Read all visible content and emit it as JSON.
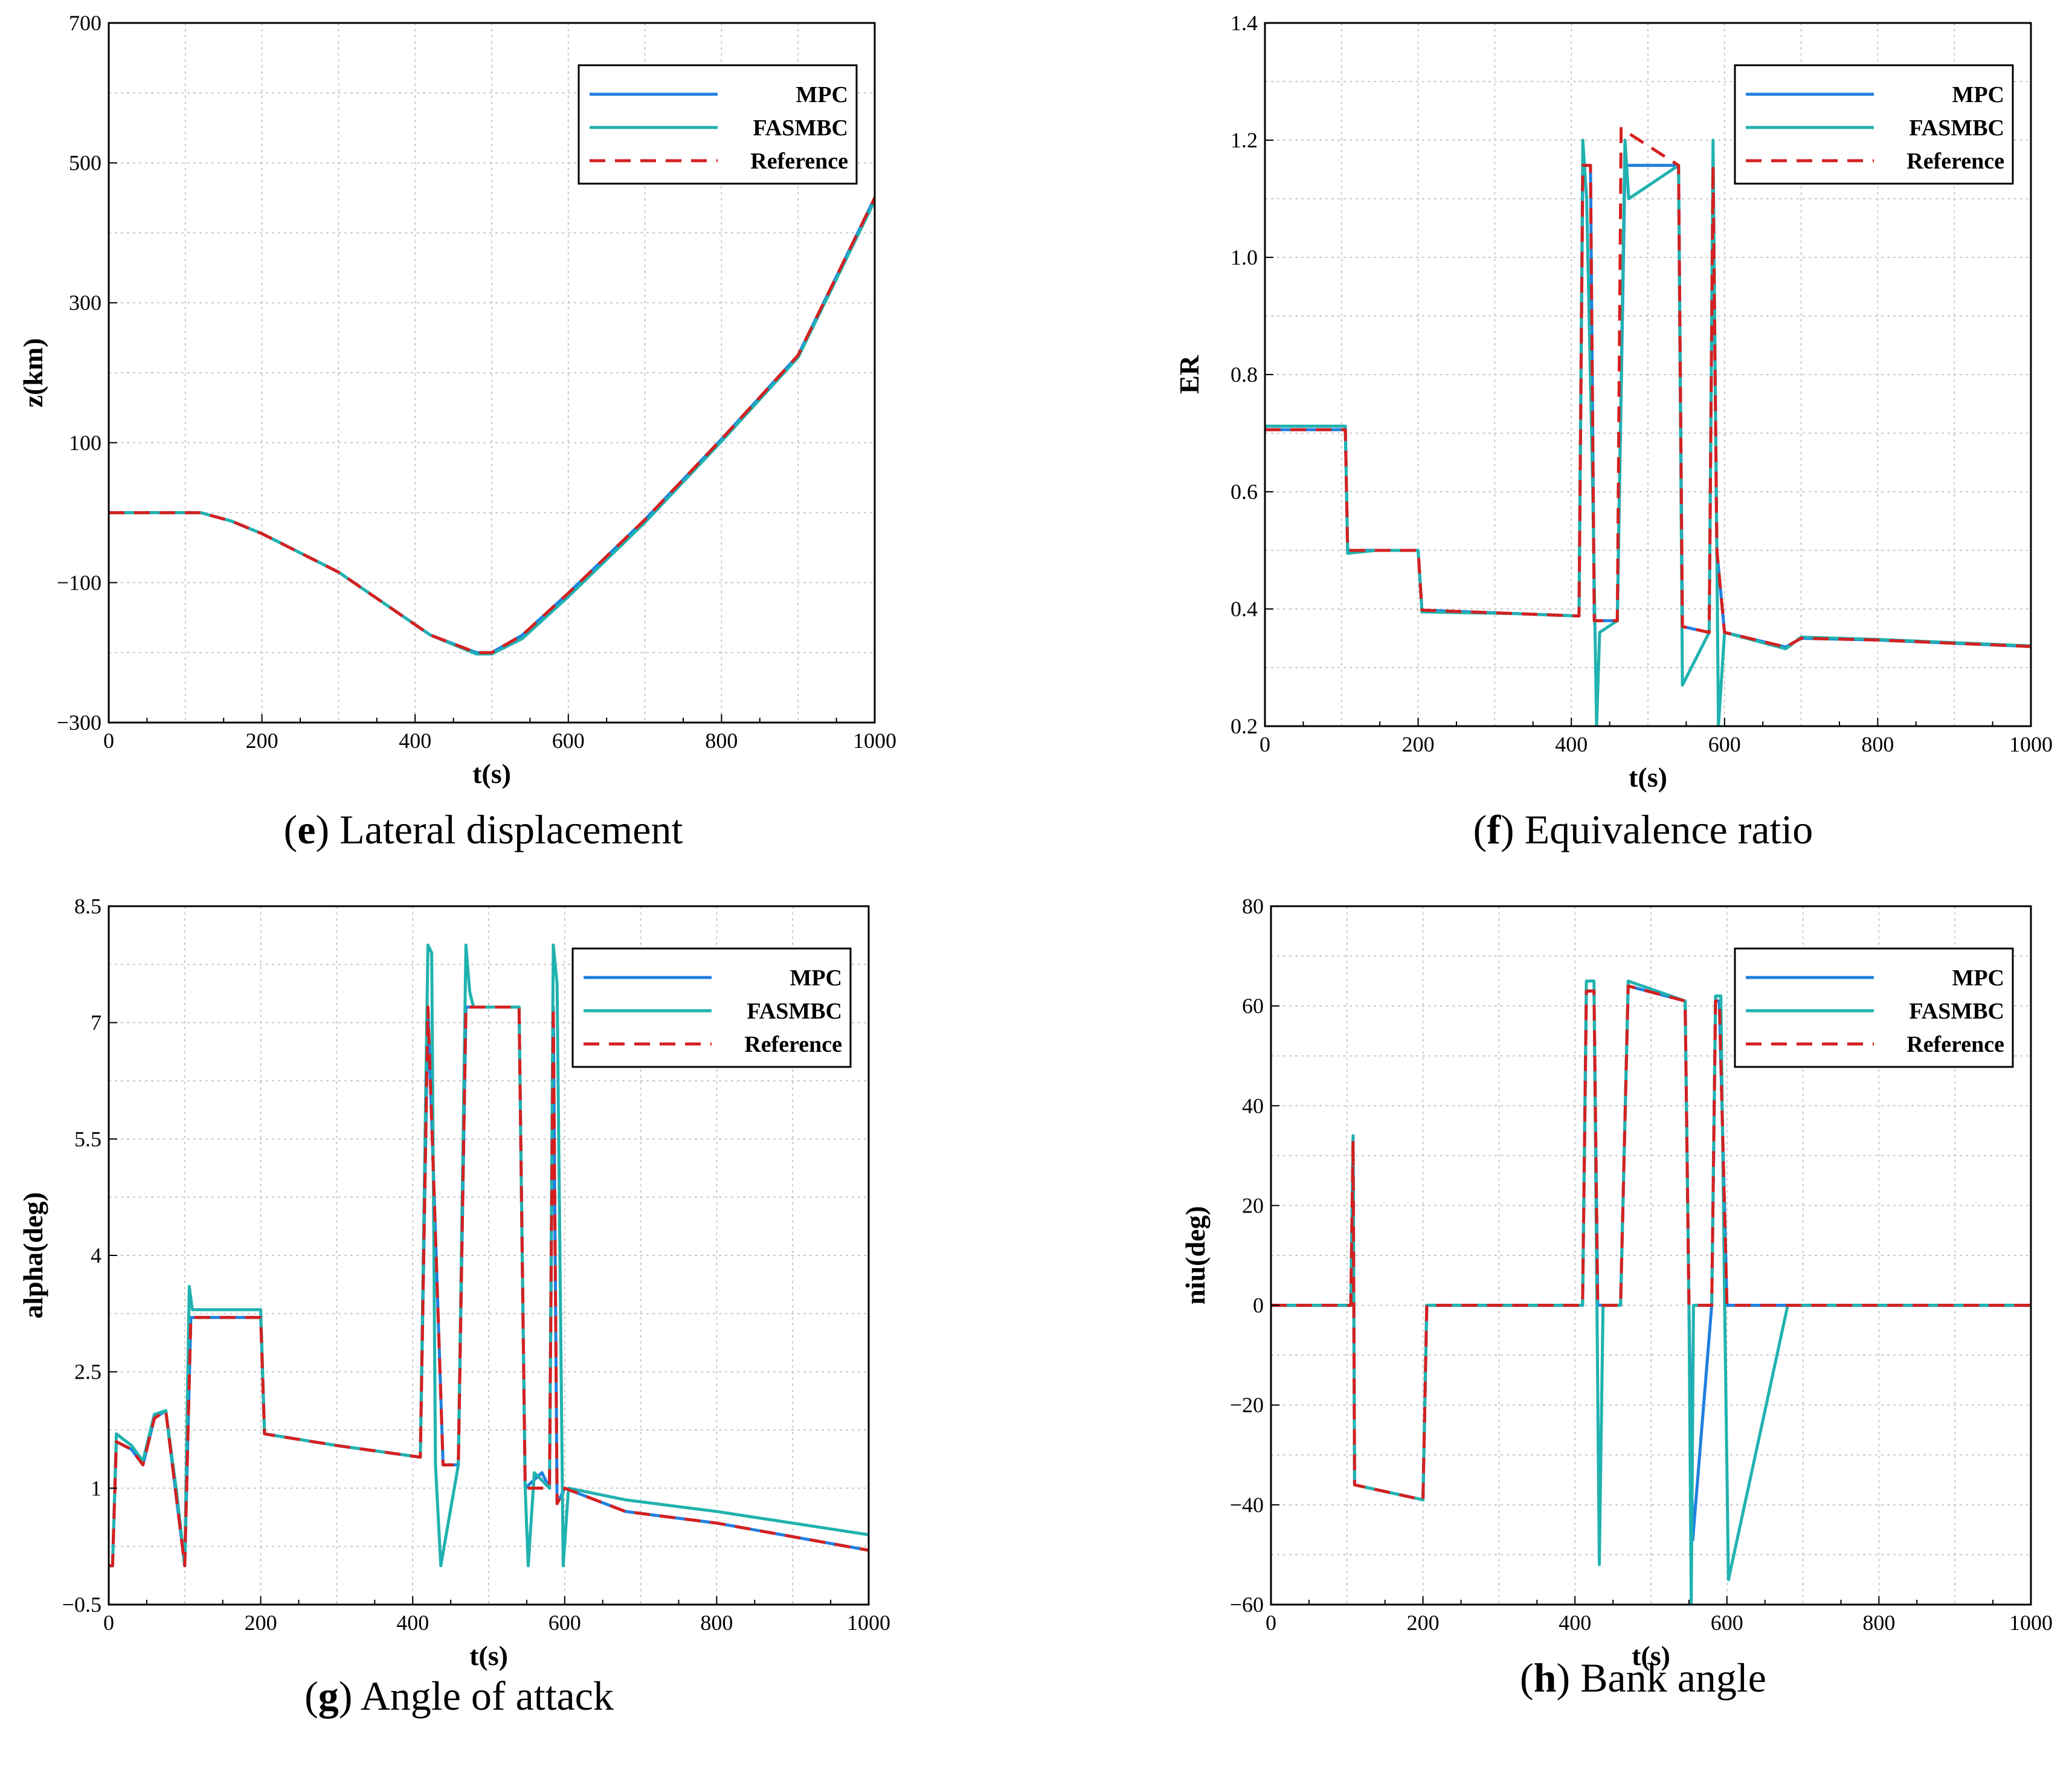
{
  "legend": [
    {
      "name": "MPC",
      "color": "#1f7fe0",
      "style": "solid"
    },
    {
      "name": "FASMBC",
      "color": "#20b2b0",
      "style": "solid"
    },
    {
      "name": "Reference",
      "color": "#d42020",
      "style": "dashed"
    }
  ],
  "chart_data": [
    {
      "id": "e",
      "type": "line",
      "caption_letter": "e",
      "caption_text": " Lateral displacement",
      "xlabel": "t(s)",
      "ylabel": "z(km)",
      "xlim": [
        0,
        1000
      ],
      "ylim": [
        -300,
        700
      ],
      "xticks": [
        0,
        200,
        400,
        600,
        800,
        1000
      ],
      "yticks": [
        -300,
        -100,
        100,
        300,
        500,
        700
      ],
      "yticklabels": [
        "−300",
        "−100",
        "100",
        "300",
        "500",
        "700"
      ],
      "grid": true,
      "legend_position": "top-right",
      "series": [
        {
          "name": "MPC",
          "x": [
            0,
            60,
            120,
            160,
            200,
            300,
            420,
            480,
            500,
            540,
            600,
            700,
            800,
            900,
            1000
          ],
          "y": [
            0,
            0,
            0,
            -12,
            -30,
            -85,
            -175,
            -200,
            -200,
            -175,
            -115,
            -10,
            105,
            225,
            450
          ]
        },
        {
          "name": "FASMBC",
          "x": [
            0,
            60,
            120,
            160,
            200,
            300,
            420,
            480,
            500,
            540,
            600,
            700,
            800,
            900,
            1000
          ],
          "y": [
            0,
            0,
            0,
            -12,
            -30,
            -85,
            -175,
            -202,
            -202,
            -180,
            -120,
            -14,
            102,
            222,
            446
          ]
        },
        {
          "name": "Reference",
          "x": [
            0,
            60,
            120,
            160,
            200,
            300,
            420,
            480,
            500,
            540,
            600,
            700,
            800,
            900,
            1000
          ],
          "y": [
            0,
            0,
            0,
            -12,
            -30,
            -85,
            -175,
            -200,
            -200,
            -175,
            -115,
            -10,
            105,
            225,
            450
          ]
        }
      ]
    },
    {
      "id": "f",
      "type": "line",
      "caption_letter": "f",
      "caption_text": " Equivalence ratio",
      "xlabel": "t(s)",
      "ylabel": "ER",
      "xlim": [
        0,
        1000
      ],
      "ylim": [
        0.2,
        1.4
      ],
      "xticks": [
        0,
        200,
        400,
        600,
        800,
        1000
      ],
      "yticks": [
        0.2,
        0.4,
        0.6,
        0.8,
        1.0,
        1.2,
        1.4
      ],
      "yticklabels": [
        "0.2",
        "0.4",
        "0.6",
        "0.8",
        "1.0",
        "1.2",
        "1.4"
      ],
      "grid": true,
      "legend_position": "top-right",
      "series": [
        {
          "name": "MPC",
          "x": [
            0,
            105,
            108,
            145,
            146,
            200,
            205,
            330,
            410,
            415,
            425,
            430,
            440,
            460,
            470,
            540,
            545,
            580,
            585,
            590,
            600,
            680,
            700,
            800,
            1000
          ],
          "y": [
            0.706,
            0.706,
            0.5,
            0.5,
            0.5,
            0.5,
            0.398,
            0.392,
            0.388,
            1.157,
            1.157,
            0.38,
            0.38,
            0.38,
            1.157,
            1.157,
            0.37,
            0.36,
            1.157,
            0.5,
            0.36,
            0.335,
            0.35,
            0.347,
            0.336
          ]
        },
        {
          "name": "FASMBC",
          "x": [
            0,
            105,
            108,
            145,
            200,
            205,
            330,
            410,
            415,
            420,
            428,
            433,
            437,
            460,
            470,
            475,
            540,
            545,
            580,
            585,
            592,
            600,
            680,
            700,
            800,
            1000
          ],
          "y": [
            0.712,
            0.712,
            0.495,
            0.5,
            0.5,
            0.395,
            0.392,
            0.388,
            1.2,
            1.1,
            0.6,
            0.2,
            0.36,
            0.38,
            1.2,
            1.1,
            1.157,
            0.27,
            0.36,
            1.2,
            0.2,
            0.36,
            0.332,
            0.352,
            0.348,
            0.337
          ]
        },
        {
          "name": "Reference",
          "x": [
            0,
            105,
            108,
            145,
            200,
            205,
            330,
            410,
            415,
            425,
            430,
            460,
            465,
            540,
            545,
            580,
            585,
            590,
            600,
            680,
            700,
            800,
            1000
          ],
          "y": [
            0.706,
            0.706,
            0.5,
            0.5,
            0.5,
            0.398,
            0.392,
            0.388,
            1.157,
            1.157,
            0.38,
            0.38,
            1.22,
            1.157,
            0.37,
            0.36,
            1.157,
            0.5,
            0.36,
            0.335,
            0.35,
            0.347,
            0.336
          ]
        }
      ]
    },
    {
      "id": "g",
      "type": "line",
      "caption_letter": "g",
      "caption_text": " Angle of attack",
      "xlabel": "t(s)",
      "ylabel": "alpha(deg)",
      "xlim": [
        0,
        1000
      ],
      "ylim": [
        -0.5,
        8.5
      ],
      "xticks": [
        0,
        200,
        400,
        600,
        800,
        1000
      ],
      "yticks": [
        -0.5,
        1,
        2.5,
        4,
        5.5,
        7,
        8.5
      ],
      "yticklabels": [
        "−0.5",
        "1",
        "2.5",
        "4",
        "5.5",
        "7",
        "8.5"
      ],
      "grid": true,
      "legend_position": "top-right",
      "series": [
        {
          "name": "MPC",
          "x": [
            0,
            5,
            10,
            30,
            45,
            60,
            75,
            90,
            100,
            108,
            145,
            200,
            205,
            300,
            410,
            420,
            440,
            460,
            470,
            540,
            548,
            570,
            580,
            585,
            590,
            600,
            680,
            800,
            1000
          ],
          "y": [
            0.0,
            0.0,
            1.6,
            1.5,
            1.3,
            1.9,
            2.0,
            0.8,
            0.0,
            3.2,
            3.2,
            3.2,
            1.7,
            1.55,
            1.4,
            7.2,
            1.3,
            1.3,
            7.2,
            7.2,
            1.0,
            1.2,
            1.0,
            7.2,
            0.8,
            1.0,
            0.7,
            0.55,
            0.2
          ]
        },
        {
          "name": "FASMBC",
          "x": [
            0,
            5,
            10,
            30,
            45,
            60,
            75,
            90,
            100,
            106,
            110,
            145,
            200,
            205,
            300,
            410,
            420,
            425,
            430,
            437,
            460,
            470,
            475,
            480,
            540,
            548,
            552,
            560,
            580,
            585,
            590,
            598,
            605,
            680,
            800,
            1000
          ],
          "y": [
            0.0,
            0.0,
            1.7,
            1.55,
            1.35,
            1.95,
            2.0,
            0.9,
            0.0,
            3.6,
            3.3,
            3.3,
            3.3,
            1.7,
            1.55,
            1.4,
            8.0,
            7.9,
            1.3,
            0.0,
            1.3,
            8.0,
            7.4,
            7.2,
            7.2,
            1.0,
            0.0,
            1.2,
            1.0,
            8.0,
            7.5,
            0.0,
            1.0,
            0.85,
            0.7,
            0.4
          ]
        },
        {
          "name": "Reference",
          "x": [
            0,
            5,
            10,
            30,
            45,
            60,
            75,
            90,
            100,
            108,
            145,
            200,
            205,
            300,
            410,
            420,
            440,
            460,
            470,
            540,
            548,
            580,
            585,
            590,
            600,
            680,
            800,
            1000
          ],
          "y": [
            0.0,
            0.0,
            1.6,
            1.5,
            1.3,
            1.9,
            2.0,
            0.8,
            0.0,
            3.2,
            3.2,
            3.2,
            1.7,
            1.55,
            1.4,
            7.2,
            1.3,
            1.3,
            7.2,
            7.2,
            1.0,
            1.0,
            7.2,
            0.8,
            1.0,
            0.7,
            0.55,
            0.2
          ]
        }
      ]
    },
    {
      "id": "h",
      "type": "line",
      "caption_letter": "h",
      "caption_text": " Bank angle",
      "xlabel": "t(s)",
      "ylabel": "niu(deg)",
      "xlim": [
        0,
        1000
      ],
      "ylim": [
        -60,
        80
      ],
      "xticks": [
        0,
        200,
        400,
        600,
        800,
        1000
      ],
      "yticks": [
        -60,
        -40,
        -20,
        0,
        20,
        40,
        60,
        80
      ],
      "yticklabels": [
        "−60",
        "−40",
        "−20",
        "0",
        "20",
        "40",
        "60",
        "80"
      ],
      "grid": true,
      "legend_position": "top-right",
      "series": [
        {
          "name": "MPC",
          "x": [
            0,
            105,
            108,
            110,
            200,
            205,
            380,
            410,
            415,
            425,
            430,
            460,
            470,
            545,
            550,
            555,
            580,
            585,
            590,
            600,
            680,
            1000
          ],
          "y": [
            0,
            0,
            33,
            -36,
            -39,
            0,
            0,
            0,
            63,
            63,
            0,
            0,
            64,
            61,
            0,
            -47,
            0,
            61,
            61,
            0,
            0,
            0
          ]
        },
        {
          "name": "FASMBC",
          "x": [
            0,
            105,
            108,
            110,
            200,
            205,
            380,
            410,
            415,
            425,
            432,
            437,
            460,
            470,
            545,
            550,
            553,
            556,
            580,
            585,
            592,
            597,
            602,
            680,
            1000
          ],
          "y": [
            0,
            0,
            34,
            -36,
            -39,
            0,
            0,
            0,
            65,
            65,
            -52,
            0,
            0,
            65,
            61,
            0,
            -60,
            0,
            0,
            62,
            62,
            0,
            -55,
            0,
            0
          ]
        },
        {
          "name": "Reference",
          "x": [
            0,
            105,
            108,
            110,
            200,
            205,
            380,
            410,
            415,
            425,
            430,
            460,
            470,
            545,
            550,
            580,
            585,
            590,
            600,
            680,
            1000
          ],
          "y": [
            0,
            0,
            33,
            -36,
            -39,
            0,
            0,
            0,
            63,
            63,
            0,
            0,
            64,
            61,
            0,
            0,
            61,
            61,
            0,
            0,
            0
          ]
        }
      ]
    }
  ]
}
